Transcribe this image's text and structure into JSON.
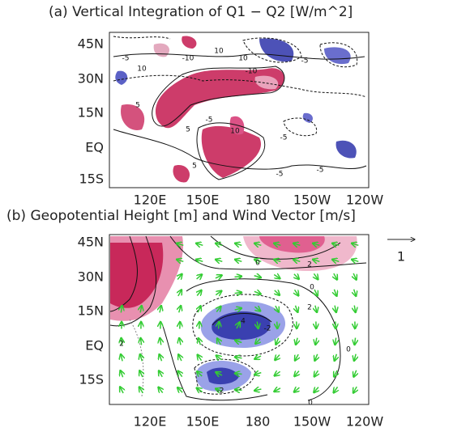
{
  "panels": [
    {
      "title": "(a) Vertical Integration of Q1 − Q2 [W/m^2]",
      "yticks": [
        "45N",
        "30N",
        "15N",
        "EQ",
        "15S"
      ],
      "xticks": [
        "120E",
        "150E",
        "180",
        "150W",
        "120W"
      ],
      "contour_labels": [
        "10",
        "-10",
        "10",
        "-10",
        "-5",
        "10",
        "5",
        "-5",
        "10",
        "5",
        "5",
        "-5",
        "-5",
        "-5",
        "-5"
      ]
    },
    {
      "title": "(b) Geopotential Height [m] and Wind Vector [m/s]",
      "yticks": [
        "45N",
        "30N",
        "15N",
        "EQ",
        "15S"
      ],
      "xticks": [
        "120E",
        "150E",
        "180",
        "150W",
        "120W"
      ],
      "reference_vector": "1",
      "contour_labels": [
        "0",
        "2",
        "4",
        "2",
        "2",
        "-2",
        "-2",
        "0",
        "0",
        "0"
      ]
    }
  ]
}
